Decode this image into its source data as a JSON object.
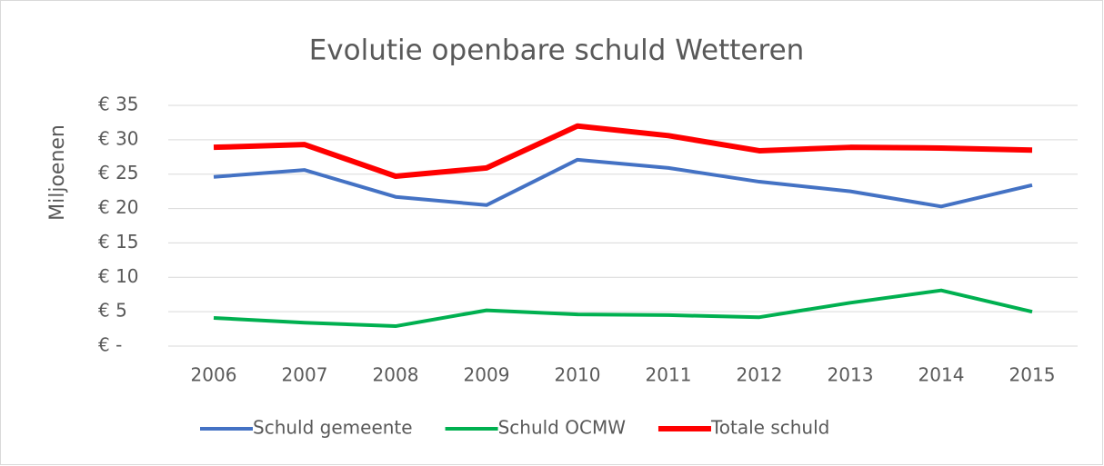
{
  "chart_data": {
    "type": "line",
    "title": "Evolutie openbare schuld Wetteren",
    "y_label": "Miljoenen",
    "categories": [
      "2006",
      "2007",
      "2008",
      "2009",
      "2010",
      "2011",
      "2012",
      "2013",
      "2014",
      "2015"
    ],
    "series": [
      {
        "name": "Schuld gemeente",
        "color": "#4472c4",
        "values": [
          24.6,
          25.6,
          21.7,
          20.5,
          27.1,
          25.9,
          23.9,
          22.5,
          20.3,
          23.4
        ]
      },
      {
        "name": "Schuld OCMW",
        "color": "#00b050",
        "values": [
          4.1,
          3.4,
          2.9,
          5.2,
          4.6,
          4.5,
          4.2,
          6.3,
          8.1,
          5.0
        ]
      },
      {
        "name": "Totale schuld",
        "color": "#ff0000",
        "values": [
          28.9,
          29.3,
          24.7,
          25.9,
          32.0,
          30.6,
          28.4,
          28.9,
          28.8,
          28.5
        ]
      }
    ],
    "ylim": [
      0,
      35
    ],
    "yticks": [
      {
        "value": 0,
        "label": "€ -"
      },
      {
        "value": 5,
        "label": "€ 5"
      },
      {
        "value": 10,
        "label": "€ 10"
      },
      {
        "value": 15,
        "label": "€ 15"
      },
      {
        "value": 20,
        "label": "€ 20"
      },
      {
        "value": 25,
        "label": "€ 25"
      },
      {
        "value": 30,
        "label": "€ 30"
      },
      {
        "value": 35,
        "label": "€ 35"
      }
    ],
    "grid": true,
    "legend": "bottom"
  }
}
